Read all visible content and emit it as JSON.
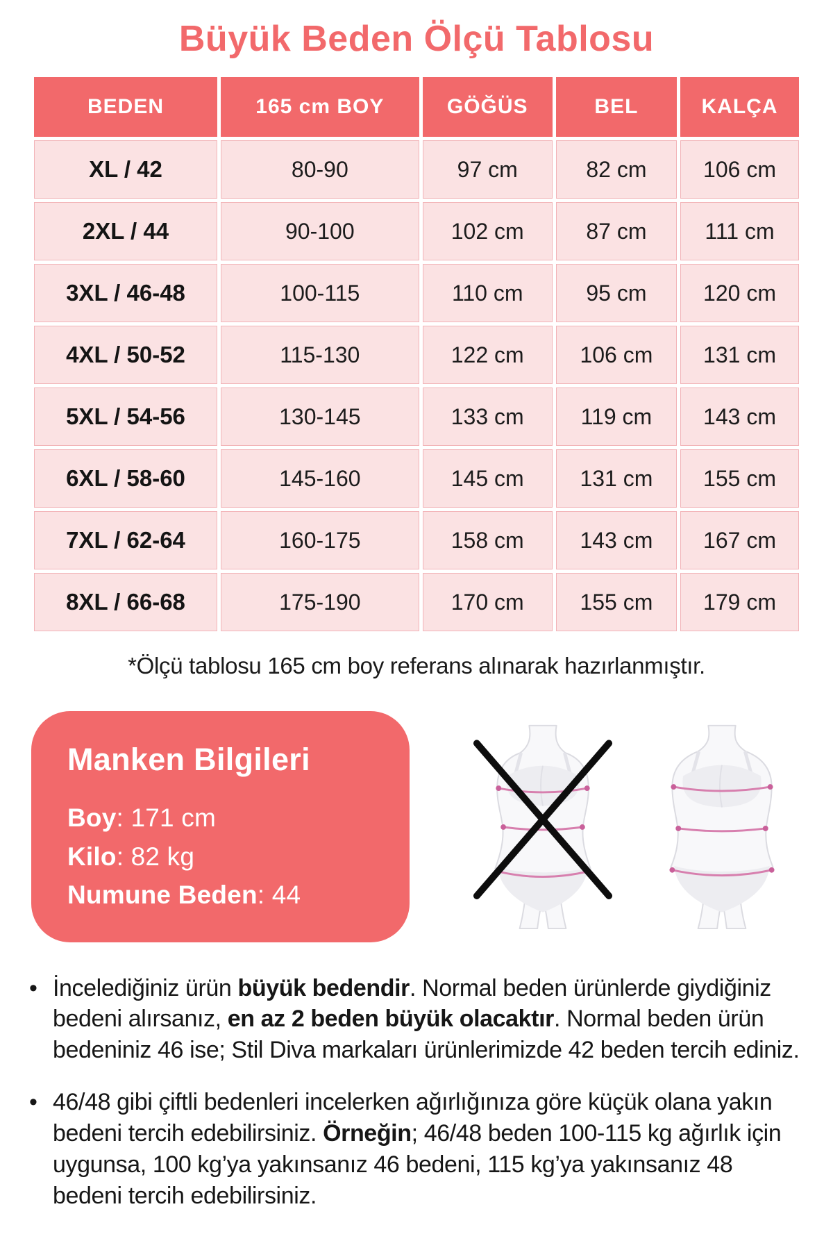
{
  "page": {
    "title": "Büyük Beden Ölçü Tablosu",
    "footnote": "*Ölçü tablosu 165 cm boy referans alınarak hazırlanmıştır."
  },
  "size_table": {
    "columns": [
      "BEDEN",
      "165 cm BOY",
      "GÖĞÜS",
      "BEL",
      "KALÇA"
    ],
    "rows": [
      [
        "XL / 42",
        "80-90",
        "97 cm",
        "82 cm",
        "106 cm"
      ],
      [
        "2XL / 44",
        "90-100",
        "102 cm",
        "87 cm",
        "111 cm"
      ],
      [
        "3XL / 46-48",
        "100-115",
        "110 cm",
        "95 cm",
        "120 cm"
      ],
      [
        "4XL / 50-52",
        "115-130",
        "122 cm",
        "106 cm",
        "131 cm"
      ],
      [
        "5XL / 54-56",
        "130-145",
        "133 cm",
        "119 cm",
        "143 cm"
      ],
      [
        "6XL / 58-60",
        "145-160",
        "145 cm",
        "131 cm",
        "155 cm"
      ],
      [
        "7XL / 62-64",
        "160-175",
        "158 cm",
        "143 cm",
        "167 cm"
      ],
      [
        "8XL / 66-68",
        "175-190",
        "170 cm",
        "155 cm",
        "179 cm"
      ]
    ]
  },
  "model_info": {
    "title": "Manken Bilgileri",
    "fields": [
      {
        "label": "Boy",
        "value": "171 cm"
      },
      {
        "label": "Kilo",
        "value": "82 kg"
      },
      {
        "label": "Numune Beden",
        "value": "44"
      }
    ]
  },
  "figures": {
    "left_icon": "crossed-out-slim-body-figure",
    "right_icon": "plus-size-body-figure"
  },
  "notes": [
    {
      "segments": [
        {
          "text": "İncelediğiniz ürün ",
          "bold": false
        },
        {
          "text": "büyük bedendir",
          "bold": true
        },
        {
          "text": ". Normal beden ürünlerde giydiğiniz bedeni alırsanız, ",
          "bold": false
        },
        {
          "text": "en az 2 beden büyük olacaktır",
          "bold": true
        },
        {
          "text": ". Normal beden ürün bedeniniz 46 ise; Stil Diva markaları ürünlerimizde 42 beden tercih ediniz.",
          "bold": false
        }
      ]
    },
    {
      "segments": [
        {
          "text": "46/48 gibi çiftli bedenleri incelerken ağırlığınıza göre küçük olana yakın bedeni tercih edebilirsiniz. ",
          "bold": false
        },
        {
          "text": "Örneğin",
          "bold": true
        },
        {
          "text": "; 46/48 beden 100-115 kg ağırlık için uygunsa, 100 kg’ya yakınsanız 46 bedeni, 115 kg’ya yakınsanız 48 bedeni tercih edebilirsiniz.",
          "bold": false
        }
      ]
    }
  ],
  "colors": {
    "accent_coral": "#f2696b",
    "cell_pink": "#fbe2e3",
    "cell_border_pink": "#f2b3b7",
    "text_dark": "#1a1a1a",
    "measure_line_pink": "#d77fae",
    "figure_gray": "#dbdbe1",
    "cross_black": "#0d0d0d"
  }
}
